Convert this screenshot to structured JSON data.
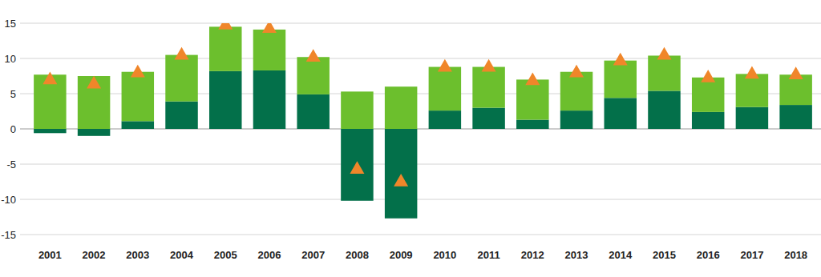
{
  "chart_data": {
    "type": "bar",
    "stacked": true,
    "grid": true,
    "categories": [
      "2001",
      "2002",
      "2003",
      "2004",
      "2005",
      "2006",
      "2007",
      "2008",
      "2009",
      "2010",
      "2011",
      "2012",
      "2013",
      "2014",
      "2015",
      "2016",
      "2017",
      "2018"
    ],
    "series": [
      {
        "type": "bar",
        "color": "#03704a",
        "values": [
          -0.6,
          -1.0,
          1.1,
          3.9,
          8.2,
          8.3,
          4.9,
          -10.2,
          -12.7,
          2.6,
          3.0,
          1.3,
          2.6,
          4.4,
          5.4,
          2.4,
          3.1,
          3.4
        ]
      },
      {
        "type": "bar",
        "color": "#6cbf2d",
        "values": [
          7.7,
          7.5,
          7.0,
          6.6,
          6.3,
          5.8,
          5.3,
          5.3,
          6.0,
          6.2,
          5.8,
          5.7,
          5.5,
          5.3,
          5.0,
          4.9,
          4.7,
          4.3
        ]
      },
      {
        "type": "scatter",
        "marker": "triangle",
        "color": "#f0862a",
        "values": [
          7.1,
          6.5,
          8.1,
          10.6,
          14.9,
          14.4,
          10.3,
          -5.6,
          -7.4,
          8.9,
          8.9,
          7.0,
          8.1,
          9.8,
          10.6,
          7.4,
          7.9,
          7.8
        ]
      }
    ],
    "ylim": [
      -15,
      15
    ],
    "yticks": [
      -15,
      -10,
      -5,
      0,
      5,
      10,
      15
    ]
  }
}
